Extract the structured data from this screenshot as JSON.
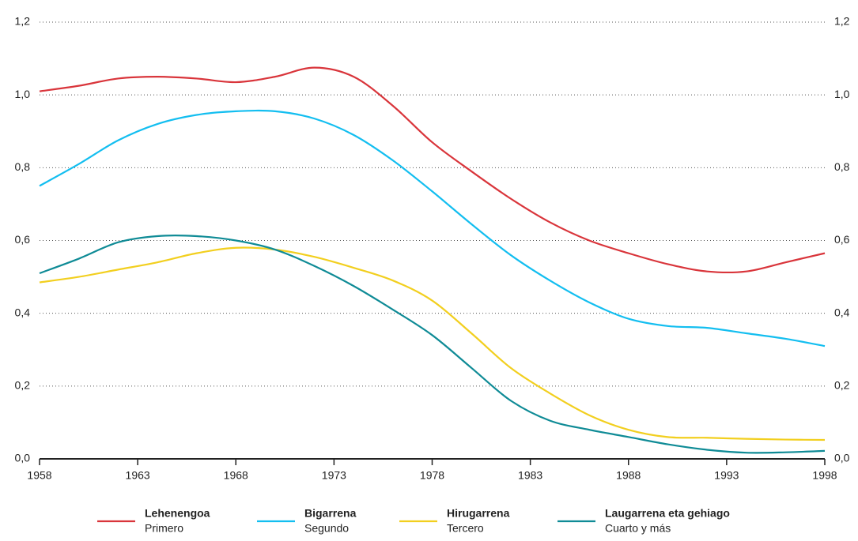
{
  "chart_data": {
    "type": "line",
    "x": [
      1958,
      1960,
      1962,
      1964,
      1966,
      1968,
      1970,
      1972,
      1974,
      1976,
      1978,
      1980,
      1982,
      1984,
      1986,
      1988,
      1990,
      1992,
      1994,
      1996,
      1998
    ],
    "xlim": [
      1958,
      1998
    ],
    "xticks": [
      1958,
      1963,
      1968,
      1973,
      1978,
      1983,
      1988,
      1993,
      1998
    ],
    "ylim": [
      0,
      1.2
    ],
    "yticks": [
      {
        "value": 0,
        "label": "0,0"
      },
      {
        "value": 0.2,
        "label": "0,2"
      },
      {
        "value": 0.4,
        "label": "0,4"
      },
      {
        "value": 0.6,
        "label": "0,6"
      },
      {
        "value": 0.8,
        "label": "0,8"
      },
      {
        "value": 1.0,
        "label": "1,0"
      },
      {
        "value": 1.2,
        "label": "1,2"
      }
    ],
    "grid": true,
    "series": [
      {
        "name": "Lehenengoa",
        "subtitle": "Primero",
        "color": "#d9353b",
        "values": [
          1.01,
          1.025,
          1.045,
          1.05,
          1.045,
          1.035,
          1.05,
          1.075,
          1.05,
          0.97,
          0.87,
          0.79,
          0.715,
          0.65,
          0.6,
          0.565,
          0.535,
          0.515,
          0.515,
          0.54,
          0.565
        ]
      },
      {
        "name": "Bigarrena",
        "subtitle": "Segundo",
        "color": "#13bef0",
        "values": [
          0.75,
          0.81,
          0.875,
          0.92,
          0.945,
          0.955,
          0.955,
          0.935,
          0.89,
          0.82,
          0.735,
          0.645,
          0.56,
          0.49,
          0.43,
          0.385,
          0.365,
          0.36,
          0.345,
          0.33,
          0.31
        ]
      },
      {
        "name": "Hirugarrena",
        "subtitle": "Tercero",
        "color": "#f2cf1f",
        "values": [
          0.485,
          0.5,
          0.52,
          0.54,
          0.565,
          0.58,
          0.575,
          0.555,
          0.525,
          0.49,
          0.435,
          0.345,
          0.25,
          0.18,
          0.12,
          0.08,
          0.06,
          0.058,
          0.055,
          0.053,
          0.052
        ]
      },
      {
        "name": "Laugarrena eta gehiago",
        "subtitle": "Cuarto y más",
        "color": "#0f8b96",
        "values": [
          0.51,
          0.55,
          0.595,
          0.612,
          0.612,
          0.6,
          0.575,
          0.53,
          0.475,
          0.41,
          0.34,
          0.25,
          0.16,
          0.105,
          0.08,
          0.06,
          0.04,
          0.025,
          0.017,
          0.018,
          0.022
        ]
      }
    ]
  }
}
